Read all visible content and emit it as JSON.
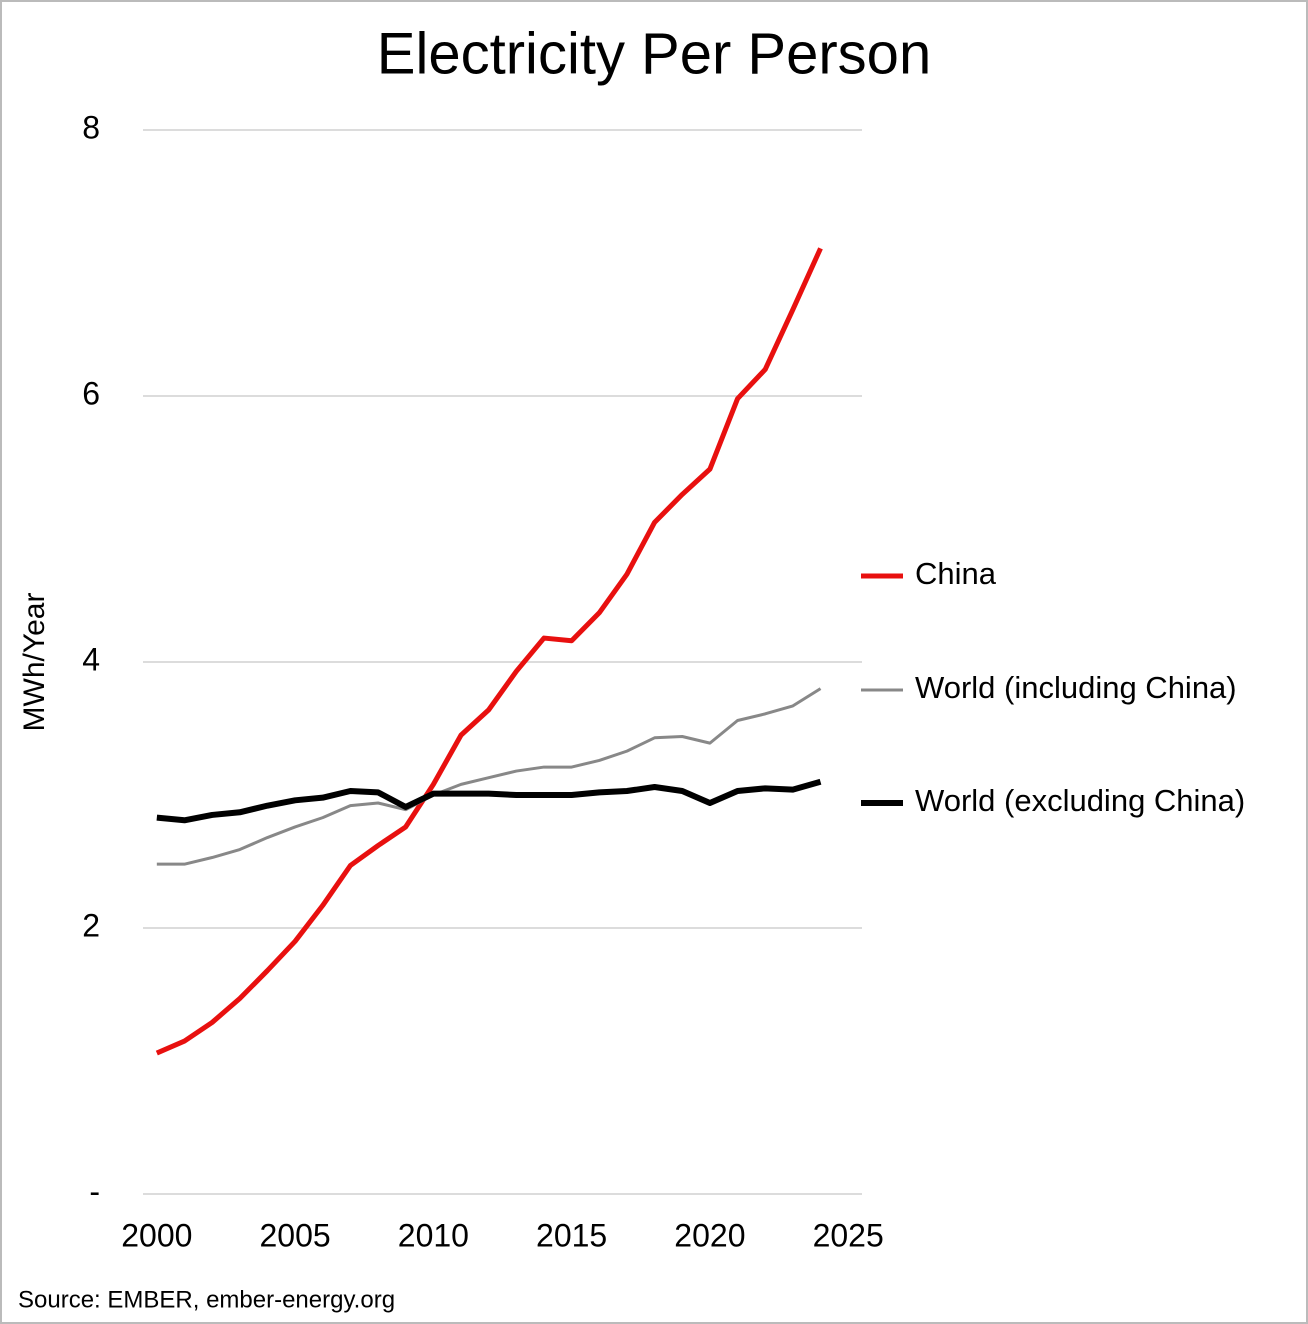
{
  "chart_data": {
    "type": "line",
    "title": "Electricity Per Person",
    "y_label": "MWh/Year",
    "source": "Source: EMBER, ember-energy.org",
    "x": [
      2000,
      2001,
      2002,
      2003,
      2004,
      2005,
      2006,
      2007,
      2008,
      2009,
      2010,
      2011,
      2012,
      2013,
      2014,
      2015,
      2016,
      2017,
      2018,
      2019,
      2020,
      2021,
      2022,
      2023,
      2024
    ],
    "series": [
      {
        "name": "China",
        "color": "#e8100f",
        "width": 5,
        "values": [
          1.06,
          1.15,
          1.29,
          1.47,
          1.68,
          1.9,
          2.17,
          2.47,
          2.62,
          2.76,
          3.08,
          3.45,
          3.64,
          3.93,
          4.18,
          4.16,
          4.37,
          4.66,
          5.05,
          5.26,
          5.45,
          5.98,
          6.2,
          6.65,
          7.11
        ]
      },
      {
        "name": "World (including China)",
        "color": "#888888",
        "width": 3,
        "values": [
          2.48,
          2.48,
          2.53,
          2.59,
          2.68,
          2.76,
          2.83,
          2.92,
          2.94,
          2.89,
          3.0,
          3.08,
          3.13,
          3.18,
          3.21,
          3.21,
          3.26,
          3.33,
          3.43,
          3.44,
          3.39,
          3.56,
          3.61,
          3.67,
          3.8
        ]
      },
      {
        "name": "World (excluding China)",
        "color": "#000000",
        "width": 6,
        "values": [
          2.83,
          2.81,
          2.85,
          2.87,
          2.92,
          2.96,
          2.98,
          3.03,
          3.02,
          2.91,
          3.01,
          3.01,
          3.01,
          3.0,
          3.0,
          3.0,
          3.02,
          3.03,
          3.06,
          3.03,
          2.94,
          3.03,
          3.05,
          3.04,
          3.1
        ]
      }
    ],
    "xlim": [
      1999.5,
      2025.5
    ],
    "xticks": [
      2000,
      2005,
      2010,
      2015,
      2020,
      2025
    ],
    "ylim": [
      0,
      8
    ],
    "yticks": [
      {
        "value": 0,
        "label": "-"
      },
      2,
      4,
      6,
      8
    ],
    "grid": true,
    "legend": "right"
  }
}
